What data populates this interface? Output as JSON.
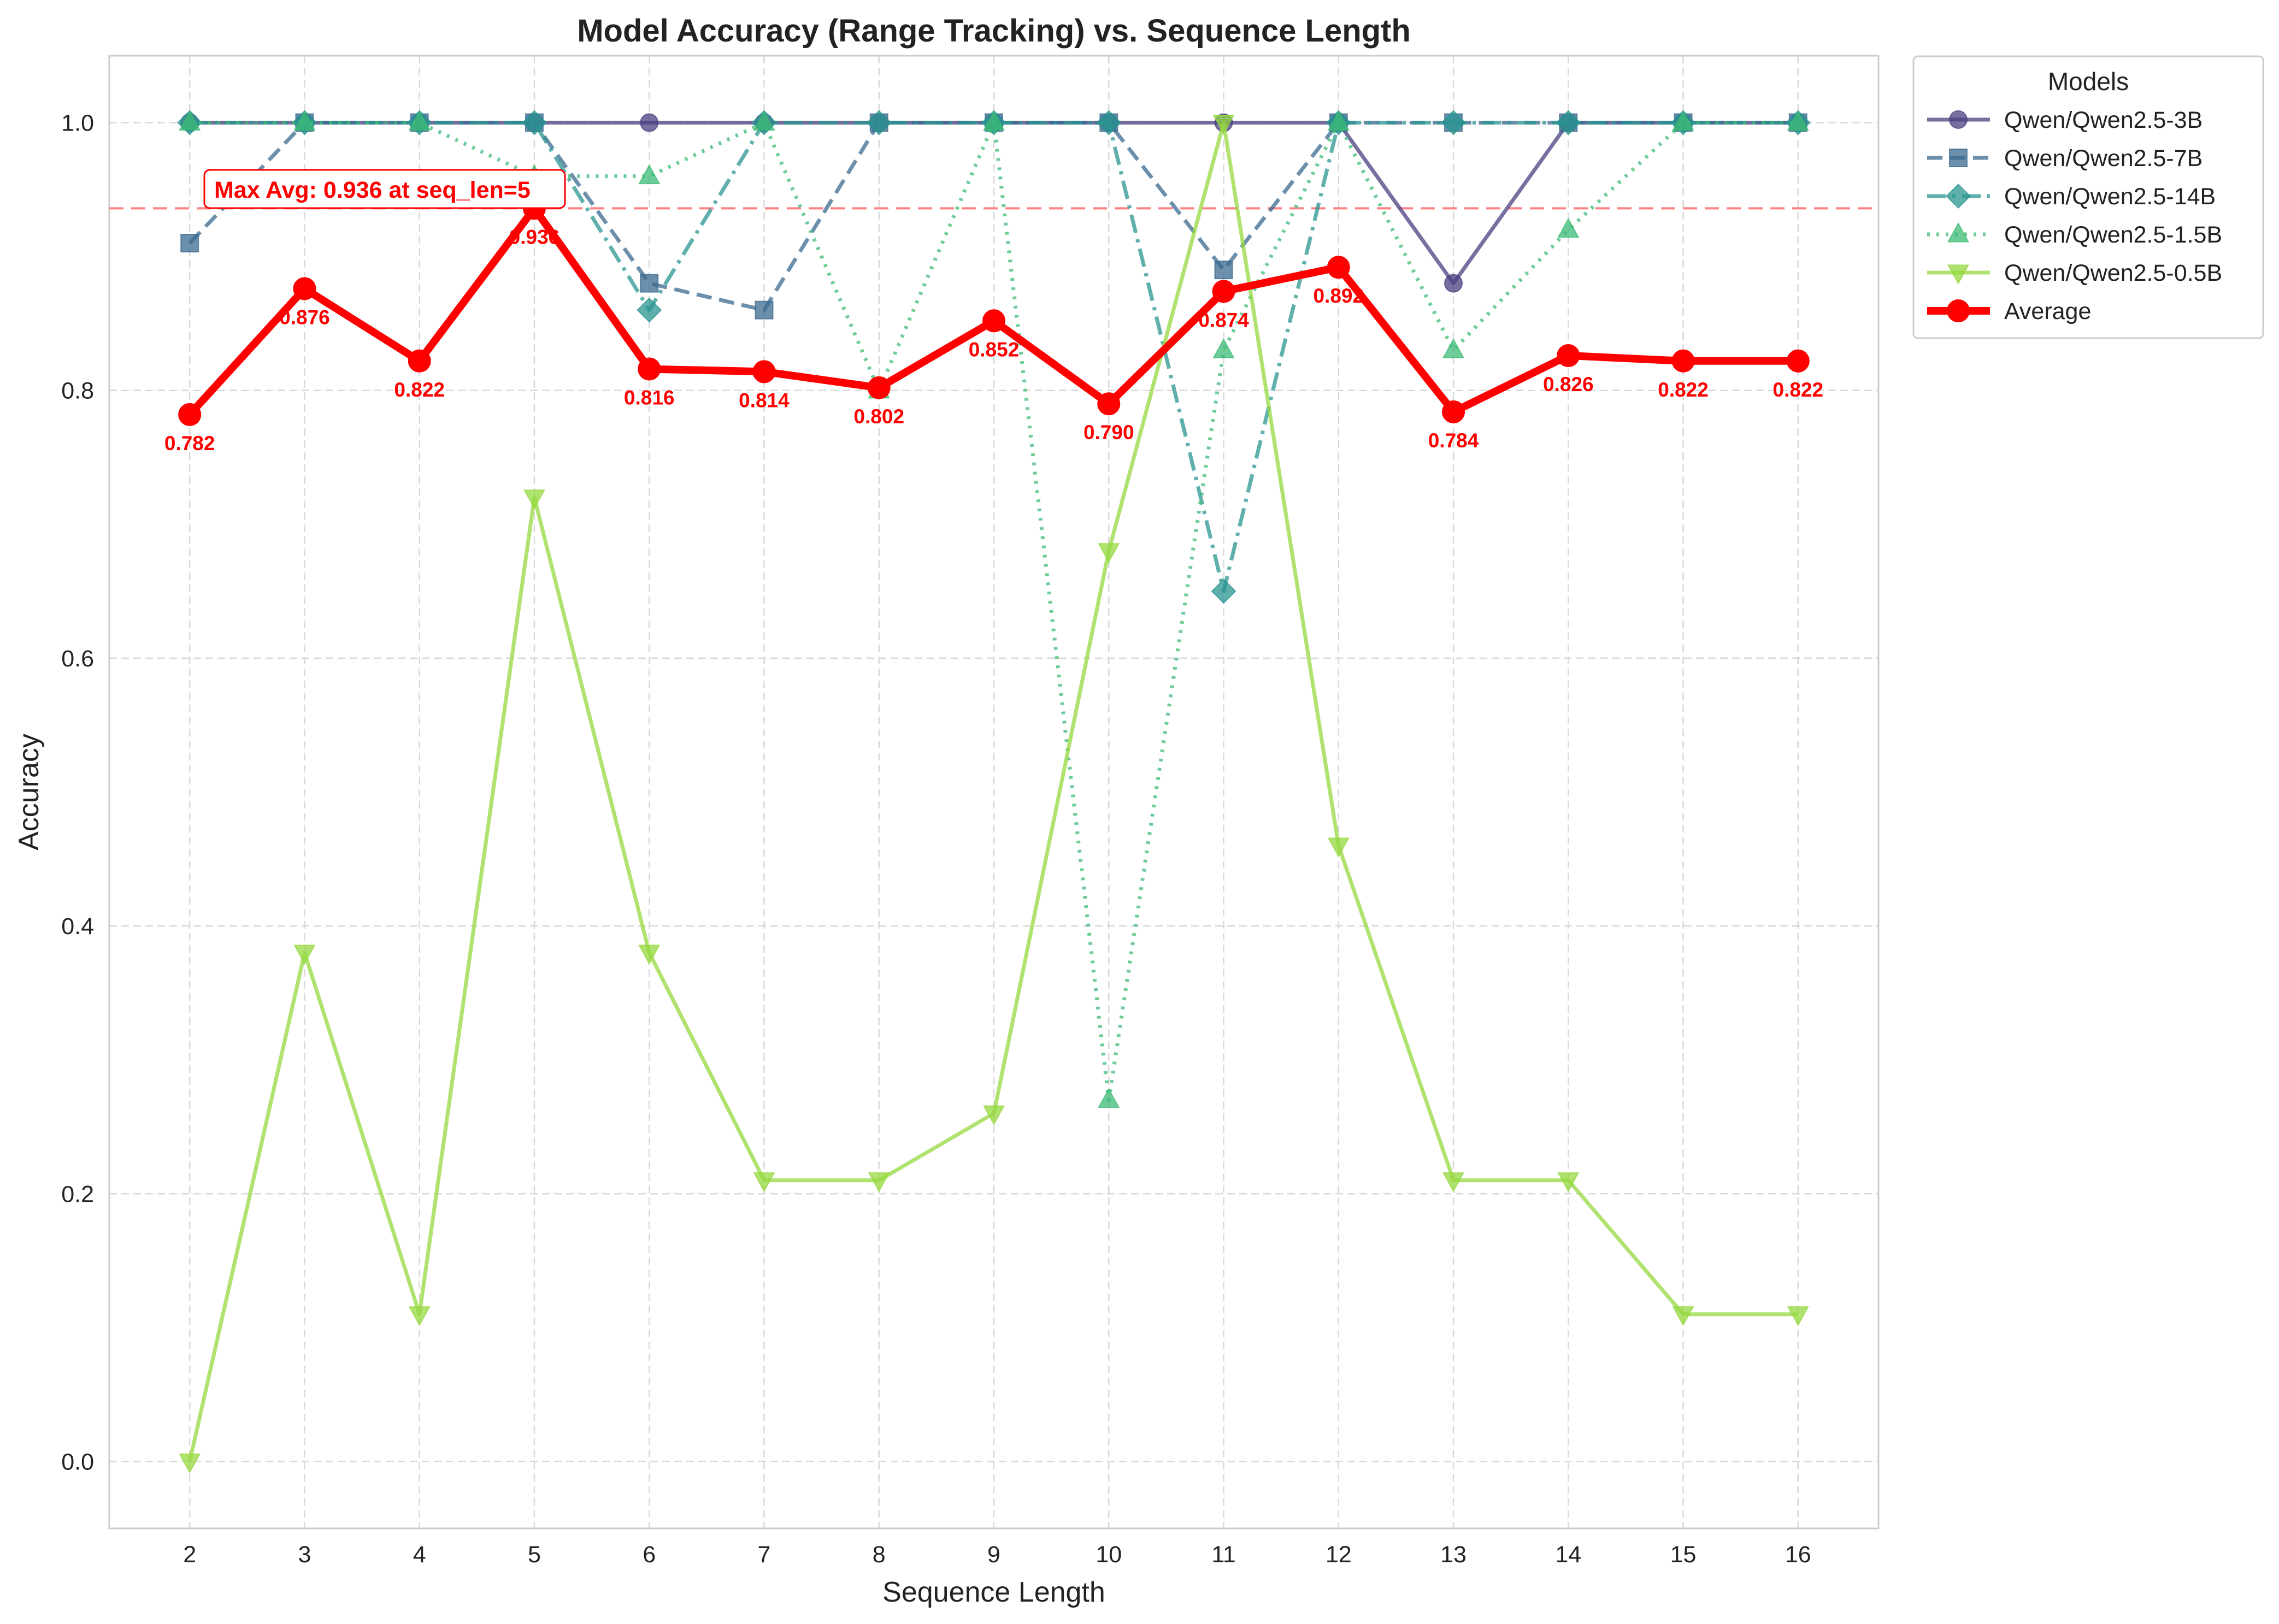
{
  "chart_data": {
    "type": "line",
    "title": "Model Accuracy (Range Tracking) vs. Sequence Length",
    "xlabel": "Sequence Length",
    "ylabel": "Accuracy",
    "x": [
      2,
      3,
      4,
      5,
      6,
      7,
      8,
      9,
      10,
      11,
      12,
      13,
      14,
      15,
      16
    ],
    "x_tick_labels": [
      "2",
      "3",
      "4",
      "5",
      "6",
      "7",
      "8",
      "9",
      "10",
      "11",
      "12",
      "13",
      "14",
      "15",
      "16"
    ],
    "xlim": [
      1.3,
      16.7
    ],
    "ylim": [
      -0.05,
      1.05
    ],
    "y_ticks": [
      0.0,
      0.2,
      0.4,
      0.6,
      0.8,
      1.0
    ],
    "y_tick_labels": [
      "0.0",
      "0.2",
      "0.4",
      "0.6",
      "0.8",
      "1.0"
    ],
    "grid": true,
    "legend_title": "Models",
    "legend_position": "outside top-right",
    "series": [
      {
        "name": "Qwen/Qwen2.5-3B",
        "color": "#4a3f80",
        "marker": "circle",
        "linestyle": "solid",
        "values": [
          1.0,
          1.0,
          1.0,
          1.0,
          1.0,
          1.0,
          1.0,
          1.0,
          1.0,
          1.0,
          1.0,
          0.88,
          1.0,
          1.0,
          1.0
        ]
      },
      {
        "name": "Qwen/Qwen2.5-7B",
        "color": "#3b6a8f",
        "marker": "square",
        "linestyle": "dashed",
        "values": [
          0.91,
          1.0,
          1.0,
          1.0,
          0.88,
          0.86,
          1.0,
          1.0,
          1.0,
          0.89,
          1.0,
          1.0,
          1.0,
          1.0,
          1.0
        ]
      },
      {
        "name": "Qwen/Qwen2.5-14B",
        "color": "#2a9590",
        "marker": "diamond",
        "linestyle": "dashdot",
        "values": [
          1.0,
          1.0,
          1.0,
          1.0,
          0.86,
          1.0,
          1.0,
          1.0,
          1.0,
          0.65,
          1.0,
          1.0,
          1.0,
          1.0,
          1.0
        ]
      },
      {
        "name": "Qwen/Qwen2.5-1.5B",
        "color": "#3cbb75",
        "marker": "triangle-up",
        "linestyle": "dotted",
        "values": [
          1.0,
          1.0,
          1.0,
          0.96,
          0.96,
          1.0,
          0.8,
          1.0,
          0.27,
          0.83,
          1.0,
          0.83,
          0.92,
          1.0,
          1.0
        ]
      },
      {
        "name": "Qwen/Qwen2.5-0.5B",
        "color": "#95d840",
        "marker": "triangle-down",
        "linestyle": "solid",
        "values": [
          0.0,
          0.38,
          0.11,
          0.72,
          0.38,
          0.21,
          0.21,
          0.26,
          0.68,
          1.0,
          0.46,
          0.21,
          0.21,
          0.11,
          0.11
        ]
      },
      {
        "name": "Average",
        "color": "#ff0000",
        "marker": "circle",
        "linestyle": "solid",
        "values": [
          0.782,
          0.876,
          0.822,
          0.936,
          0.816,
          0.814,
          0.802,
          0.852,
          0.79,
          0.874,
          0.892,
          0.784,
          0.826,
          0.822,
          0.822
        ],
        "data_labels": [
          "0.782",
          "0.876",
          "0.822",
          "0.936",
          "0.816",
          "0.814",
          "0.802",
          "0.852",
          "0.790",
          "0.874",
          "0.892",
          "0.784",
          "0.826",
          "0.822",
          "0.822"
        ]
      }
    ],
    "reference_line": {
      "y": 0.936,
      "color": "#ff8080",
      "linestyle": "dashed"
    },
    "annotation": {
      "text": "Max Avg: 0.936 at seq_len=5",
      "x": 5,
      "y": 0.936
    }
  }
}
